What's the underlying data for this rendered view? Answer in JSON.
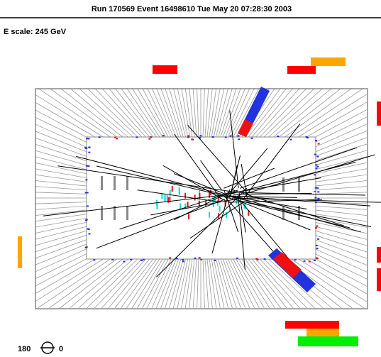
{
  "header": {
    "title": "Run 170569 Event 16498610 Tue May 20 07:28:30 2003",
    "scale": "E scale: 245 GeV"
  },
  "legend": {
    "left": "180",
    "right": "0"
  }
}
